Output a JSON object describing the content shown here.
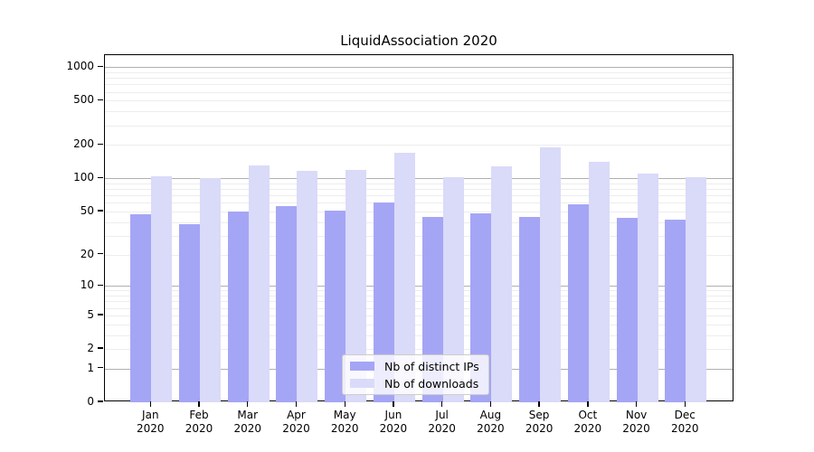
{
  "title": "LiquidAssociation 2020",
  "chart_data": {
    "type": "bar",
    "title": "LiquidAssociation 2020",
    "categories": [
      "Jan",
      "Feb",
      "Mar",
      "Apr",
      "May",
      "Jun",
      "Jul",
      "Aug",
      "Sep",
      "Oct",
      "Nov",
      "Dec"
    ],
    "year_label": "2020",
    "series": [
      {
        "name": "Nb of distinct IPs",
        "color": "#a5a5f6",
        "values": [
          47,
          38,
          50,
          56,
          51,
          60,
          45,
          48,
          45,
          58,
          44,
          42
        ]
      },
      {
        "name": "Nb of downloads",
        "color": "#dadaf9",
        "values": [
          105,
          100,
          130,
          116,
          120,
          170,
          102,
          128,
          190,
          140,
          110,
          103
        ]
      }
    ],
    "xlabel": "",
    "ylabel": "",
    "yscale": "log1p-symlog",
    "yticks": [
      0,
      1,
      2,
      5,
      10,
      20,
      50,
      100,
      200,
      500,
      1000
    ],
    "ylim": [
      0,
      1300
    ],
    "grid": "on",
    "legend_position": "lower center"
  }
}
